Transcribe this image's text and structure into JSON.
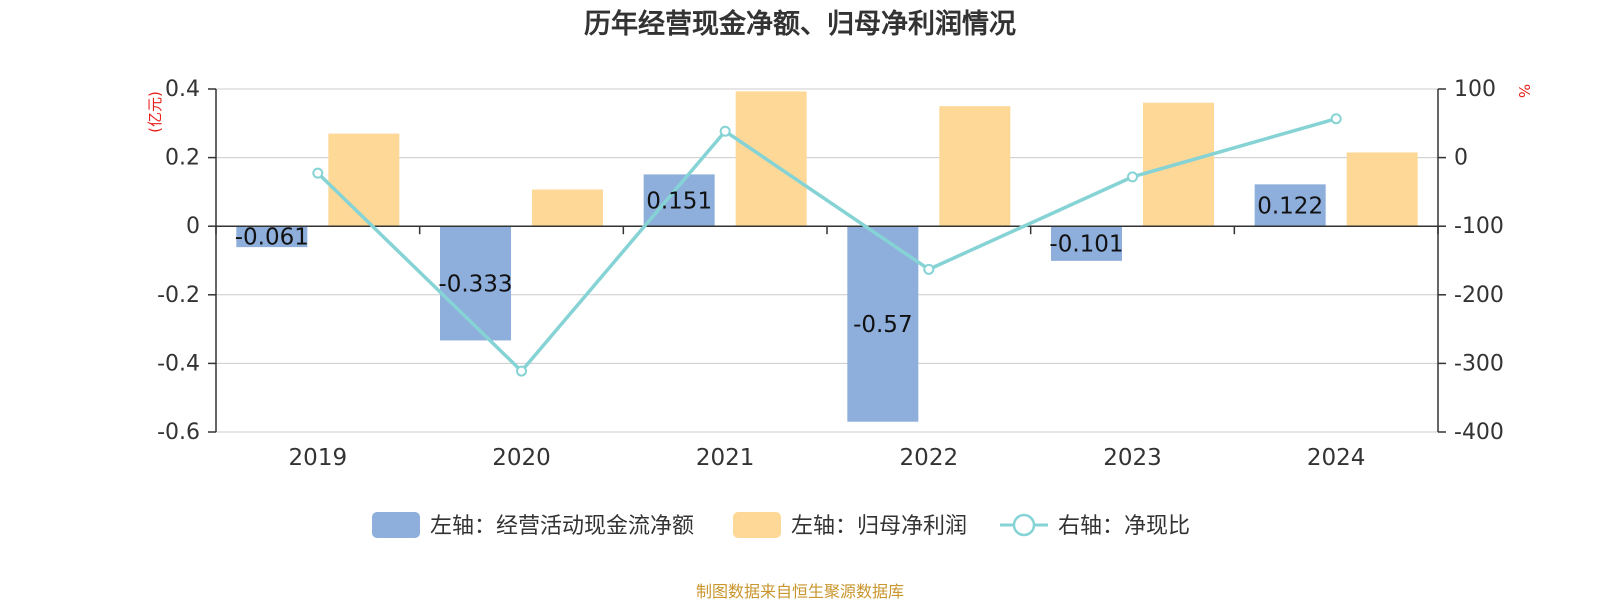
{
  "title": "历年经营现金净额、归母净利润情况",
  "source": "制图数据来自恒生聚源数据库",
  "colors": {
    "cash": "#8eaedc",
    "profit": "#fed897",
    "ratio": "#86d3d5",
    "unit": "#e8211c",
    "source": "#c9962d"
  },
  "chart_data": {
    "type": "bar",
    "title": "历年经营现金净额、归母净利润情况",
    "categories": [
      "2019",
      "2020",
      "2021",
      "2022",
      "2023",
      "2024"
    ],
    "left_axis": {
      "unit": "(亿元)",
      "ylim": [
        -0.6,
        0.4
      ],
      "ticks": [
        0.4,
        0.2,
        0,
        -0.2,
        -0.4,
        -0.6
      ],
      "tick_labels": [
        "0.4",
        "0.2",
        "0",
        "-0.2",
        "-0.4",
        "-0.6"
      ]
    },
    "right_axis": {
      "unit": "%",
      "ylim": [
        -400,
        100
      ],
      "ticks": [
        100,
        0,
        -100,
        -200,
        -300,
        -400
      ],
      "tick_labels": [
        "100",
        "0",
        "-100",
        "-200",
        "-300",
        "-400"
      ]
    },
    "series": [
      {
        "name": "左轴：经营活动现金流净额",
        "kind": "bar",
        "axis": "left",
        "values": [
          -0.061,
          -0.333,
          0.151,
          -0.57,
          -0.101,
          0.122
        ],
        "labels": [
          "-0.061",
          "-0.333",
          "0.151",
          "-0.57",
          "-0.101",
          "0.122"
        ]
      },
      {
        "name": "左轴：归母净利润",
        "kind": "bar",
        "axis": "left",
        "values": [
          0.27,
          0.107,
          0.393,
          0.35,
          0.36,
          0.215
        ]
      },
      {
        "name": "右轴：净现比",
        "kind": "line",
        "axis": "right",
        "values": [
          -22.6,
          -311.2,
          38.4,
          -162.9,
          -28.1,
          56.7
        ]
      }
    ],
    "grid": true,
    "legend_position": "bottom"
  }
}
